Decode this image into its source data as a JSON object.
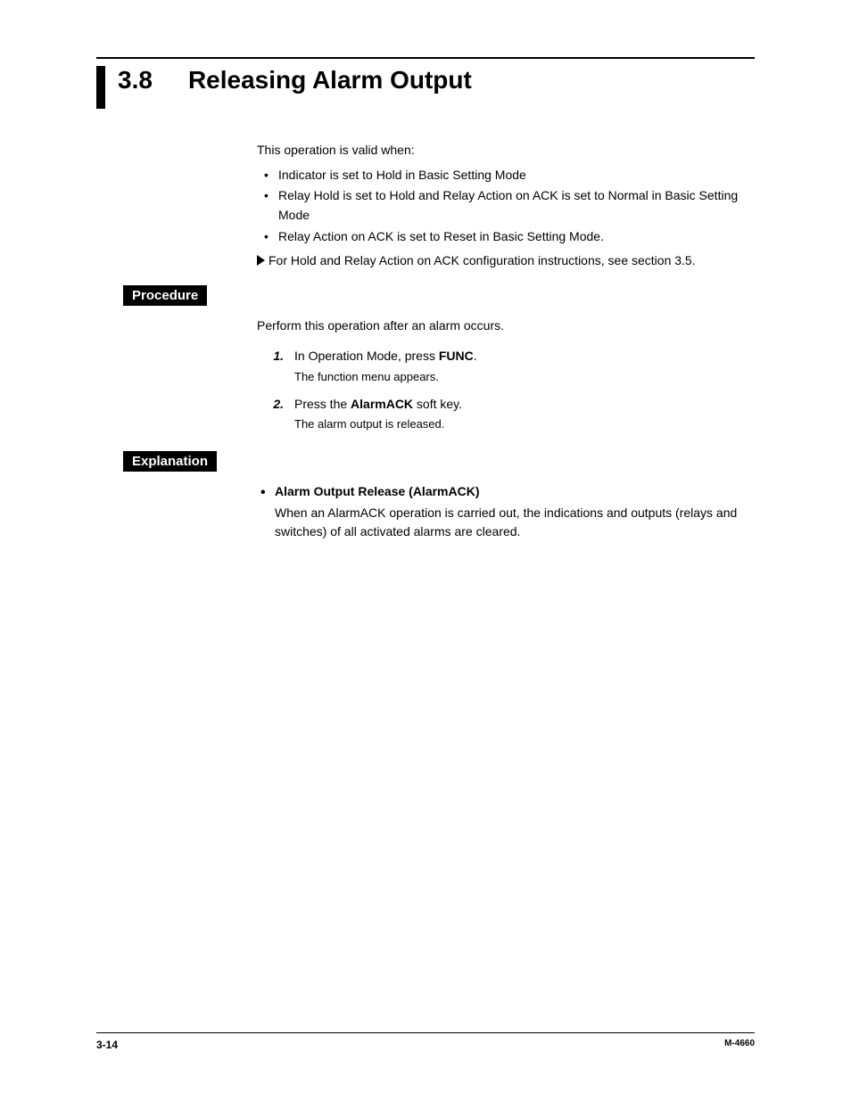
{
  "heading": {
    "number": "3.8",
    "title": "Releasing Alarm Output"
  },
  "intro": {
    "lead": "This operation is valid when:",
    "bullets": [
      "Indicator is set to Hold in Basic Setting Mode",
      "Relay Hold is set to Hold and Relay Action on ACK is set to Normal in Basic Setting Mode",
      "Relay Action on ACK is set to Reset in Basic Setting Mode."
    ],
    "reference": "For Hold and Relay Action on ACK configuration instructions, see section 3.5."
  },
  "procedure": {
    "label": "Procedure",
    "intro": "Perform this operation after an alarm occurs.",
    "steps": [
      {
        "num": "1.",
        "main_pre": "In Operation Mode, press ",
        "main_bold": "FUNC",
        "main_post": ".",
        "sub": "The function menu appears."
      },
      {
        "num": "2.",
        "main_pre": "Press the ",
        "main_bold": "AlarmACK",
        "main_post": " soft key.",
        "sub": "The alarm output is released."
      }
    ]
  },
  "explanation": {
    "label": "Explanation",
    "items": [
      {
        "title": "Alarm Output Release (AlarmACK)",
        "body": "When an AlarmACK operation is carried out, the indications and outputs (relays and switches) of all activated alarms are cleared."
      }
    ]
  },
  "footer": {
    "page": "3-14",
    "docid": "M-4660"
  }
}
